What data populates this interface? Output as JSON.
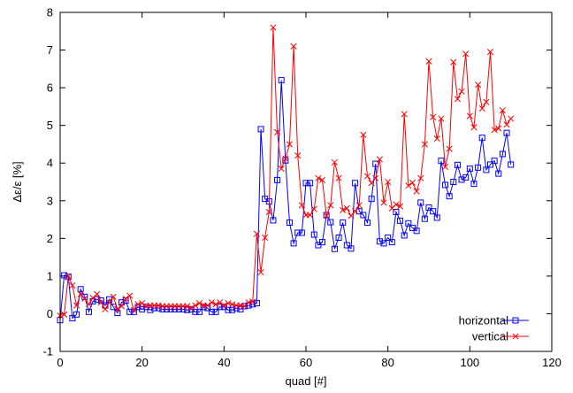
{
  "chart_data": {
    "type": "line",
    "title": "",
    "xlabel": "quad [#]",
    "ylabel": "Δε/ε [%]",
    "xlim": [
      0,
      120
    ],
    "ylim": [
      -1,
      8
    ],
    "xticks": [
      0,
      20,
      40,
      60,
      80,
      100,
      120
    ],
    "yticks": [
      -1,
      0,
      1,
      2,
      3,
      4,
      5,
      6,
      7,
      8
    ],
    "grid": false,
    "legend_position": "bottom-right",
    "series": [
      {
        "name": "horizontal",
        "color": "#0000ff",
        "marker": "square",
        "x": [
          0,
          1,
          2,
          3,
          4,
          5,
          6,
          7,
          8,
          9,
          10,
          11,
          12,
          13,
          14,
          15,
          16,
          17,
          18,
          19,
          20,
          21,
          22,
          23,
          24,
          25,
          26,
          27,
          28,
          29,
          30,
          31,
          32,
          33,
          34,
          35,
          36,
          37,
          38,
          39,
          40,
          41,
          42,
          43,
          44,
          45,
          46,
          47,
          48,
          49,
          50,
          51,
          52,
          53,
          54,
          55,
          56,
          57,
          58,
          59,
          60,
          61,
          62,
          63,
          64,
          65,
          66,
          67,
          68,
          69,
          70,
          71,
          72,
          73,
          74,
          75,
          76,
          77,
          78,
          79,
          80,
          81,
          82,
          83,
          84,
          85,
          86,
          87,
          88,
          89,
          90,
          91,
          92,
          93,
          94,
          95,
          96,
          97,
          98,
          99,
          100,
          101,
          102,
          103,
          104,
          105,
          106,
          107,
          108,
          109,
          110
        ],
        "values": [
          -0.17,
          1.02,
          0.98,
          -0.12,
          -0.02,
          0.65,
          0.45,
          0.05,
          0.33,
          0.38,
          0.35,
          0.22,
          0.38,
          0.18,
          0.02,
          0.3,
          0.35,
          0.05,
          0.05,
          0.18,
          0.12,
          0.18,
          0.1,
          0.15,
          0.15,
          0.12,
          0.12,
          0.12,
          0.12,
          0.12,
          0.12,
          0.1,
          0.12,
          0.05,
          0.05,
          0.18,
          0.15,
          0.05,
          0.05,
          0.18,
          0.18,
          0.1,
          0.1,
          0.15,
          0.12,
          0.2,
          0.22,
          0.25,
          0.28,
          4.9,
          3.05,
          2.98,
          2.48,
          3.55,
          6.2,
          4.07,
          2.42,
          1.87,
          2.15,
          2.15,
          3.47,
          3.47,
          2.1,
          1.82,
          1.9,
          2.62,
          2.43,
          1.72,
          2.02,
          2.42,
          1.82,
          1.73,
          3.47,
          2.72,
          2.62,
          2.42,
          3.05,
          3.98,
          1.92,
          1.87,
          2.02,
          1.9,
          2.7,
          2.47,
          2.08,
          2.4,
          2.28,
          2.2,
          2.95,
          2.52,
          2.82,
          2.72,
          2.55,
          4.06,
          3.42,
          3.12,
          3.5,
          3.95,
          3.56,
          3.62,
          3.85,
          3.45,
          3.88,
          4.67,
          3.82,
          3.96,
          4.06,
          3.72,
          4.24,
          4.8,
          3.96
        ]
      },
      {
        "name": "vertical",
        "color": "#ff0000",
        "marker": "x",
        "x": [
          0,
          1,
          2,
          3,
          4,
          5,
          6,
          7,
          8,
          9,
          10,
          11,
          12,
          13,
          14,
          15,
          16,
          17,
          18,
          19,
          20,
          21,
          22,
          23,
          24,
          25,
          26,
          27,
          28,
          29,
          30,
          31,
          32,
          33,
          34,
          35,
          36,
          37,
          38,
          39,
          40,
          41,
          42,
          43,
          44,
          45,
          46,
          47,
          48,
          49,
          50,
          51,
          52,
          53,
          54,
          55,
          56,
          57,
          58,
          59,
          60,
          61,
          62,
          63,
          64,
          65,
          66,
          67,
          68,
          69,
          70,
          71,
          72,
          73,
          74,
          75,
          76,
          77,
          78,
          79,
          80,
          81,
          82,
          83,
          84,
          85,
          86,
          87,
          88,
          89,
          90,
          91,
          92,
          93,
          94,
          95,
          96,
          97,
          98,
          99,
          100,
          101,
          102,
          103,
          104,
          105,
          106,
          107,
          108,
          109,
          110
        ],
        "values": [
          -0.05,
          -0.02,
          1.0,
          0.75,
          0.22,
          0.52,
          0.4,
          0.25,
          0.42,
          0.52,
          0.3,
          0.12,
          0.3,
          0.45,
          0.12,
          0.2,
          0.4,
          0.48,
          0.1,
          0.25,
          0.28,
          0.2,
          0.22,
          0.22,
          0.22,
          0.2,
          0.2,
          0.2,
          0.2,
          0.2,
          0.2,
          0.2,
          0.15,
          0.22,
          0.28,
          0.22,
          0.22,
          0.3,
          0.25,
          0.3,
          0.22,
          0.28,
          0.25,
          0.22,
          0.22,
          0.2,
          0.3,
          0.32,
          2.12,
          1.1,
          2.02,
          2.7,
          7.6,
          4.82,
          3.85,
          4.12,
          4.5,
          7.1,
          4.2,
          2.88,
          2.62,
          2.62,
          2.78,
          3.6,
          3.55,
          2.6,
          2.88,
          4.02,
          3.6,
          2.75,
          2.8,
          2.6,
          2.72,
          2.88,
          4.75,
          3.65,
          3.47,
          3.6,
          4.1,
          2.95,
          3.5,
          2.8,
          2.9,
          2.85,
          5.3,
          3.4,
          3.48,
          3.25,
          3.6,
          4.5,
          6.7,
          5.22,
          4.65,
          5.18,
          3.9,
          4.38,
          6.68,
          5.7,
          5.9,
          6.9,
          5.25,
          4.95,
          6.08,
          5.45,
          5.62,
          6.95,
          4.88,
          4.92,
          5.4,
          5.02,
          5.18
        ]
      }
    ]
  }
}
